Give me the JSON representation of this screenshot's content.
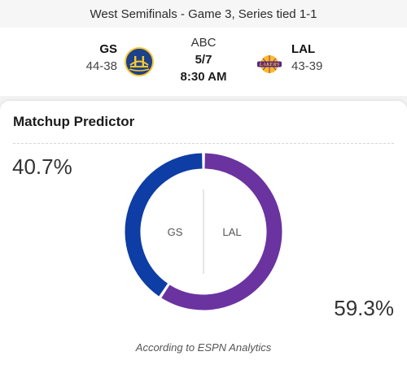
{
  "series": {
    "text": "West Semifinals - Game 3, Series tied 1-1"
  },
  "game": {
    "network": "ABC",
    "date": "5/7",
    "time": "8:30 AM",
    "away": {
      "abbr": "GS",
      "record": "44-38",
      "logo_icon": "warriors-logo-icon",
      "color": "#1d428a"
    },
    "home": {
      "abbr": "LAL",
      "record": "43-39",
      "logo_icon": "lakers-logo-icon",
      "color": "#552583"
    }
  },
  "predictor": {
    "title": "Matchup Predictor",
    "footnote": "According to ESPN Analytics"
  },
  "chart_data": {
    "type": "pie",
    "categories": [
      "GS",
      "LAL"
    ],
    "values": [
      40.7,
      59.3
    ],
    "value_labels": [
      "40.7%",
      "59.3%"
    ],
    "colors": [
      "#0d3da5",
      "#6a33a0"
    ],
    "inner_labels": [
      "GS",
      "LAL"
    ],
    "donut": true
  }
}
